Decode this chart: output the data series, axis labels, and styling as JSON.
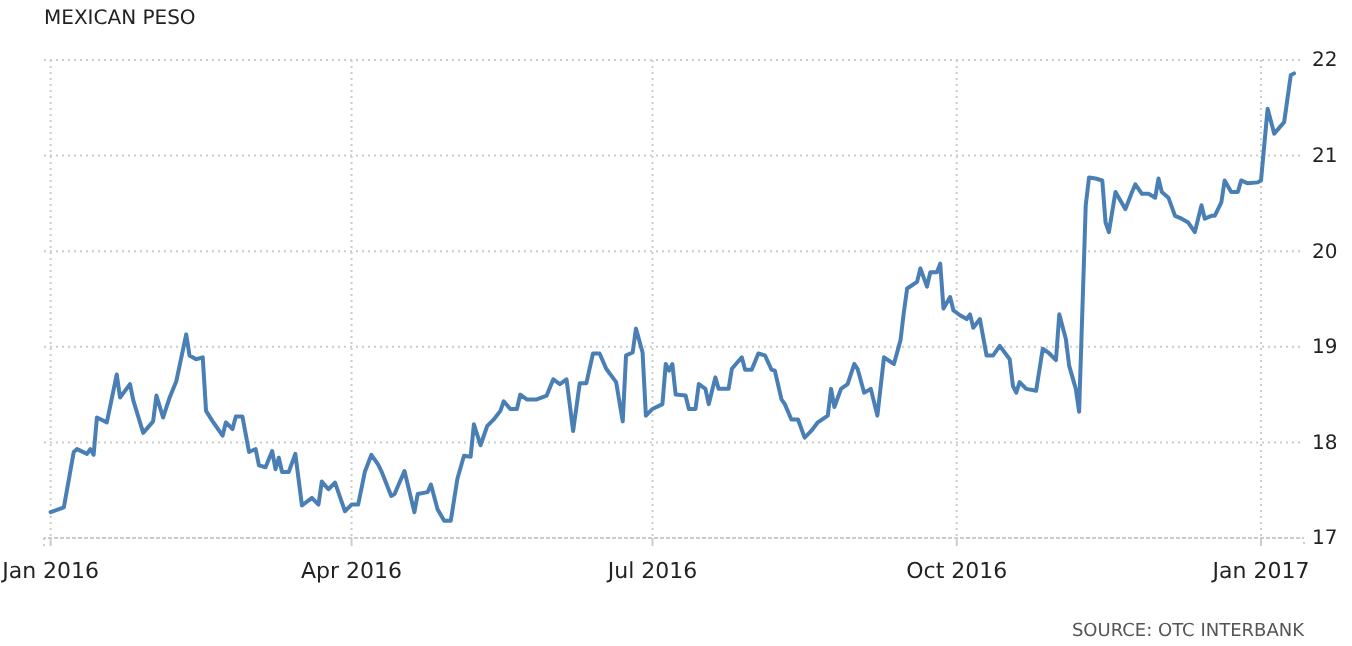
{
  "chart_data": {
    "type": "line",
    "title": "MEXICAN PESO",
    "annotations": [
      "SOURCE: OTC INTERBANK"
    ],
    "x": [
      "2016-01-01",
      "2016-01-05",
      "2016-01-08",
      "2016-01-09",
      "2016-01-12",
      "2016-01-13",
      "2016-01-14",
      "2016-01-15",
      "2016-01-18",
      "2016-01-21",
      "2016-01-22",
      "2016-01-25",
      "2016-01-26",
      "2016-01-29",
      "2016-02-01",
      "2016-02-02",
      "2016-02-04",
      "2016-02-06",
      "2016-02-08",
      "2016-02-11",
      "2016-02-12",
      "2016-02-14",
      "2016-02-16",
      "2016-02-17",
      "2016-02-19",
      "2016-02-22",
      "2016-02-23",
      "2016-02-25",
      "2016-02-26",
      "2016-02-28",
      "2016-03-01",
      "2016-03-03",
      "2016-03-04",
      "2016-03-06",
      "2016-03-08",
      "2016-03-09",
      "2016-03-10",
      "2016-03-11",
      "2016-03-13",
      "2016-03-15",
      "2016-03-17",
      "2016-03-20",
      "2016-03-22",
      "2016-03-23",
      "2016-03-25",
      "2016-03-27",
      "2016-03-30",
      "2016-04-01",
      "2016-04-03",
      "2016-04-05",
      "2016-04-07",
      "2016-04-09",
      "2016-04-10",
      "2016-04-13",
      "2016-04-14",
      "2016-04-17",
      "2016-04-20",
      "2016-04-21",
      "2016-04-24",
      "2016-04-25",
      "2016-04-27",
      "2016-04-29",
      "2016-05-01",
      "2016-05-03",
      "2016-05-05",
      "2016-05-07",
      "2016-05-08",
      "2016-05-10",
      "2016-05-12",
      "2016-05-14",
      "2016-05-16",
      "2016-05-17",
      "2016-05-19",
      "2016-05-21",
      "2016-05-22",
      "2016-05-24",
      "2016-05-27",
      "2016-05-30",
      "2016-06-01",
      "2016-06-03",
      "2016-06-05",
      "2016-06-07",
      "2016-06-09",
      "2016-06-11",
      "2016-06-13",
      "2016-06-15",
      "2016-06-17",
      "2016-06-20",
      "2016-06-22",
      "2016-06-23",
      "2016-06-25",
      "2016-06-26",
      "2016-06-28",
      "2016-06-29",
      "2016-07-01",
      "2016-07-04",
      "2016-07-05",
      "2016-07-06",
      "2016-07-07",
      "2016-07-08",
      "2016-07-11",
      "2016-07-12",
      "2016-07-14",
      "2016-07-15",
      "2016-07-17",
      "2016-07-18",
      "2016-07-20",
      "2016-07-21",
      "2016-07-24",
      "2016-07-25",
      "2016-07-28",
      "2016-07-29",
      "2016-07-31",
      "2016-08-02",
      "2016-08-04",
      "2016-08-06",
      "2016-08-07",
      "2016-08-09",
      "2016-08-10",
      "2016-08-12",
      "2016-08-14",
      "2016-08-16",
      "2016-08-18",
      "2016-08-20",
      "2016-08-23",
      "2016-08-24",
      "2016-08-25",
      "2016-08-27",
      "2016-08-29",
      "2016-08-31",
      "2016-09-01",
      "2016-09-03",
      "2016-09-05",
      "2016-09-07",
      "2016-09-09",
      "2016-09-12",
      "2016-09-14",
      "2016-09-15",
      "2016-09-16",
      "2016-09-19",
      "2016-09-20",
      "2016-09-22",
      "2016-09-23",
      "2016-09-25",
      "2016-09-26",
      "2016-09-27",
      "2016-09-29",
      "2016-09-30",
      "2016-10-02",
      "2016-10-04",
      "2016-10-05",
      "2016-10-06",
      "2016-10-08",
      "2016-10-10",
      "2016-10-12",
      "2016-10-14",
      "2016-10-17",
      "2016-10-18",
      "2016-10-19",
      "2016-10-20",
      "2016-10-22",
      "2016-10-25",
      "2016-10-27",
      "2016-10-29",
      "2016-10-31",
      "2016-11-01",
      "2016-11-03",
      "2016-11-04",
      "2016-11-06",
      "2016-11-07",
      "2016-11-09",
      "2016-11-10",
      "2016-11-12",
      "2016-11-14",
      "2016-11-15",
      "2016-11-16",
      "2016-11-18",
      "2016-11-19",
      "2016-11-21",
      "2016-11-23",
      "2016-11-24",
      "2016-11-26",
      "2016-11-28",
      "2016-11-30",
      "2016-12-01",
      "2016-12-02",
      "2016-12-04",
      "2016-12-06",
      "2016-12-08",
      "2016-12-10",
      "2016-12-12",
      "2016-12-14",
      "2016-12-15",
      "2016-12-17",
      "2016-12-18",
      "2016-12-20",
      "2016-12-21",
      "2016-12-23",
      "2016-12-25",
      "2016-12-26",
      "2016-12-28",
      "2016-12-31",
      "2017-01-01",
      "2017-01-03",
      "2017-01-05",
      "2017-01-08",
      "2017-01-10",
      "2017-01-11"
    ],
    "series": [
      {
        "color": "#4a7fb5",
        "values": [
          17.27,
          17.32,
          17.9,
          17.93,
          17.88,
          17.93,
          17.87,
          18.26,
          18.21,
          18.71,
          18.47,
          18.61,
          18.44,
          18.1,
          18.22,
          18.49,
          18.26,
          18.47,
          18.64,
          19.13,
          18.91,
          18.87,
          18.89,
          18.33,
          18.22,
          18.07,
          18.21,
          18.14,
          18.27,
          18.27,
          17.9,
          17.93,
          17.76,
          17.74,
          17.91,
          17.72,
          17.84,
          17.69,
          17.69,
          17.88,
          17.34,
          17.42,
          17.35,
          17.59,
          17.51,
          17.58,
          17.28,
          17.35,
          17.35,
          17.69,
          17.87,
          17.77,
          17.7,
          17.44,
          17.46,
          17.7,
          17.27,
          17.46,
          17.48,
          17.56,
          17.3,
          17.18,
          17.18,
          17.62,
          17.86,
          17.85,
          18.19,
          17.97,
          18.17,
          18.24,
          18.33,
          18.43,
          18.35,
          18.35,
          18.5,
          18.45,
          18.45,
          18.49,
          18.66,
          18.61,
          18.66,
          18.12,
          18.62,
          18.62,
          18.93,
          18.93,
          18.77,
          18.63,
          18.22,
          18.91,
          18.94,
          19.19,
          18.94,
          18.28,
          18.35,
          18.4,
          18.82,
          18.75,
          18.82,
          18.5,
          18.49,
          18.35,
          18.35,
          18.61,
          18.56,
          18.4,
          18.68,
          18.56,
          18.56,
          18.77,
          18.89,
          18.76,
          18.76,
          18.93,
          18.91,
          18.76,
          18.75,
          18.45,
          18.4,
          18.24,
          18.24,
          18.05,
          18.12,
          18.21,
          18.28,
          18.56,
          18.37,
          18.56,
          18.61,
          18.82,
          18.77,
          18.52,
          18.56,
          18.28,
          18.89,
          18.82,
          19.07,
          19.36,
          19.61,
          19.68,
          19.82,
          19.63,
          19.78,
          19.78,
          19.87,
          19.4,
          19.52,
          19.38,
          19.33,
          19.29,
          19.34,
          19.2,
          19.29,
          18.91,
          18.91,
          19.01,
          18.87,
          18.59,
          18.52,
          18.63,
          18.56,
          18.54,
          18.98,
          18.93,
          18.86,
          19.34,
          19.08,
          18.8,
          18.56,
          18.32,
          20.48,
          20.77,
          20.76,
          20.74,
          20.3,
          20.2,
          20.62,
          20.56,
          20.44,
          20.62,
          20.7,
          20.6,
          20.6,
          20.56,
          20.76,
          20.62,
          20.56,
          20.37,
          20.34,
          20.3,
          20.2,
          20.48,
          20.34,
          20.37,
          20.37,
          20.51,
          20.74,
          20.62,
          20.62,
          20.74,
          20.71,
          20.72,
          20.74,
          21.49,
          21.23,
          21.35,
          21.84,
          21.86
        ]
      }
    ],
    "xlim": [
      "2015-12-30",
      "2017-01-14"
    ],
    "xticks": [
      {
        "value": "2016-01-01",
        "label": "Jan 2016"
      },
      {
        "value": "2016-04-01",
        "label": "Apr 2016"
      },
      {
        "value": "2016-07-01",
        "label": "Jul 2016"
      },
      {
        "value": "2016-10-01",
        "label": "Oct 2016"
      },
      {
        "value": "2017-01-01",
        "label": "Jan 2017"
      }
    ],
    "ylim": [
      17,
      22
    ],
    "yticks": [
      17,
      18,
      19,
      20,
      21,
      22
    ],
    "grid": true,
    "marker": "none",
    "line_style": "solid"
  }
}
